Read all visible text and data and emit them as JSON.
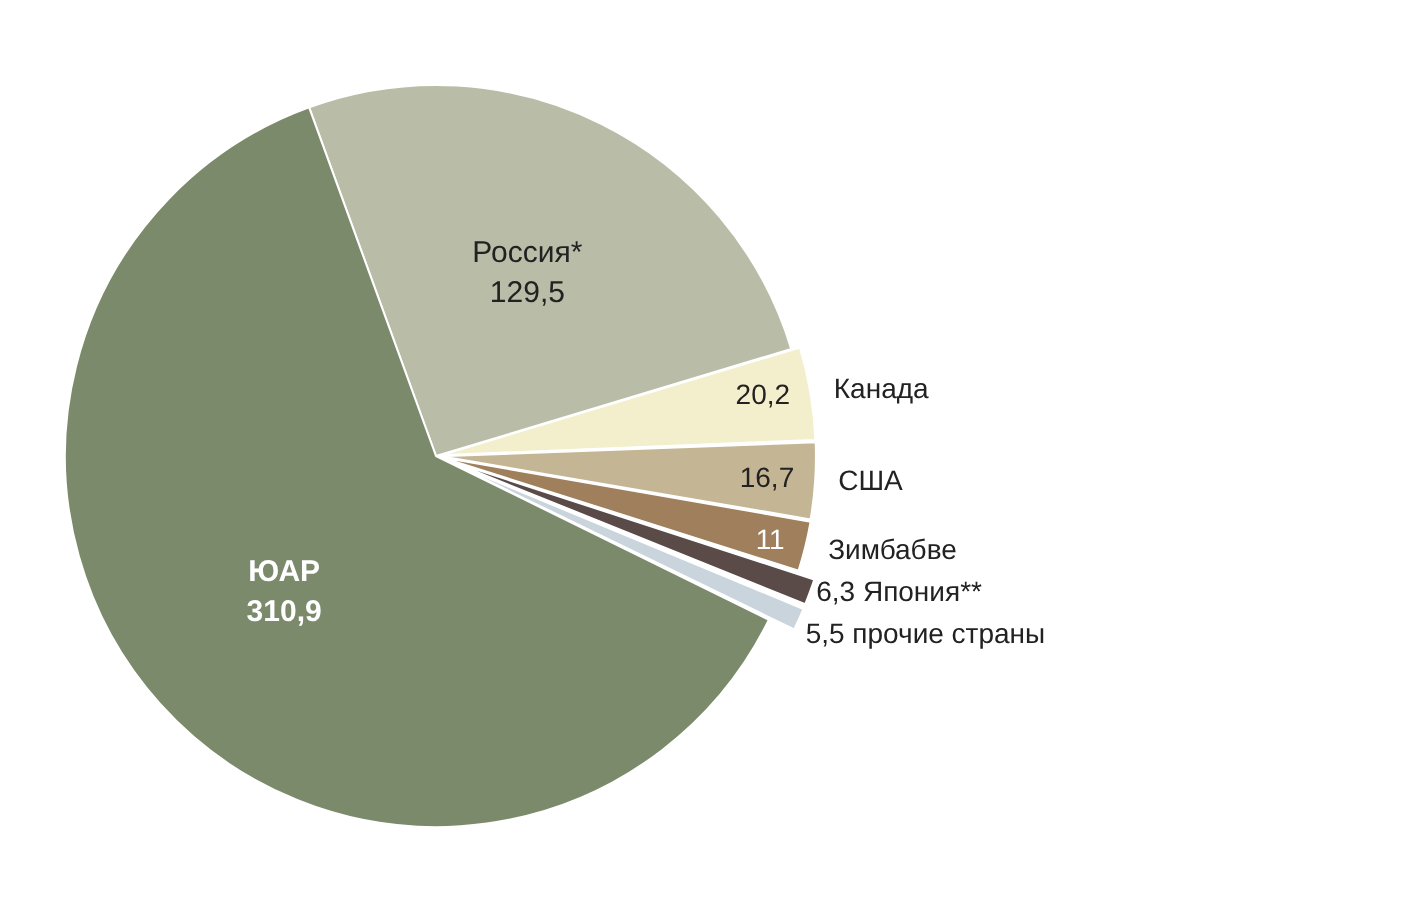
{
  "chart_data": {
    "type": "pie",
    "categories": [
      "Россия*",
      "Канада",
      "США",
      "Зимбабве",
      "Япония**",
      "прочие страны",
      "ЮАР"
    ],
    "values": [
      129.5,
      20.2,
      16.7,
      11,
      6.3,
      5.5,
      310.9
    ],
    "colors": [
      "#b9bca6",
      "#f3efcc",
      "#c4b594",
      "#9f7f5c",
      "#5a4a48",
      "#c9d4dc",
      "#7c8a6c"
    ],
    "value_labels": [
      "129,5",
      "20,2",
      "16,7",
      "11",
      "6,3",
      "5,5",
      "310,9"
    ],
    "legend": false
  }
}
